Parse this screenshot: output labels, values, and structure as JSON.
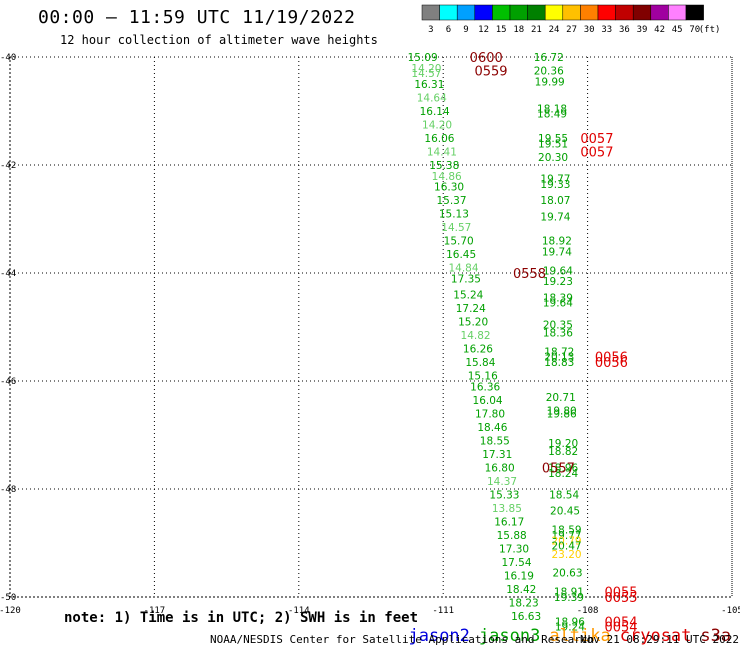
{
  "title": "00:00 — 11:59 UTC 11/19/2022",
  "subtitle": "12 hour collection of altimeter wave heights",
  "colorbar": {
    "unit_label": "(ft)",
    "ticks": [
      "3",
      "6",
      "9",
      "12",
      "15",
      "18",
      "21",
      "24",
      "27",
      "30",
      "33",
      "36",
      "39",
      "42",
      "45",
      "70"
    ],
    "colors": [
      "#808080",
      "#00ffff",
      "#00a0ff",
      "#0000ff",
      "#00c000",
      "#00a000",
      "#008000",
      "#ffff00",
      "#ffc000",
      "#ff8000",
      "#ff0000",
      "#c00000",
      "#800000",
      "#a000a0",
      "#ff80ff",
      "#000000"
    ]
  },
  "chart_data": {
    "type": "scatter",
    "description_axes": {
      "x": "longitude",
      "y": "latitude"
    },
    "xlim": [
      -120,
      -105
    ],
    "ylim": [
      -50,
      -40
    ],
    "x_ticks": [
      "-120",
      "-117",
      "-114",
      "-111",
      "-108",
      "-105"
    ],
    "y_ticks": [
      "-40",
      "-42",
      "-44",
      "-46",
      "-48",
      "-50"
    ],
    "grid": true,
    "track_a": [
      {
        "lon": -111.74,
        "lat": -40.0,
        "swh": "15.09",
        "color": "#00a000"
      },
      {
        "lon": -111.66,
        "lat": -40.2,
        "swh": "14.20",
        "color": "#66d066"
      },
      {
        "lon": -111.66,
        "lat": -40.3,
        "swh": "14.57",
        "color": "#66d066"
      },
      {
        "lon": -111.6,
        "lat": -40.5,
        "swh": "16.31",
        "color": "#00a000"
      },
      {
        "lon": -111.55,
        "lat": -40.75,
        "swh": "14.64",
        "color": "#66d066"
      },
      {
        "lon": -111.49,
        "lat": -41.0,
        "swh": "16.14",
        "color": "#00a000"
      },
      {
        "lon": -111.44,
        "lat": -41.25,
        "swh": "14.20",
        "color": "#66d066"
      },
      {
        "lon": -111.39,
        "lat": -41.5,
        "swh": "16.06",
        "color": "#00a000"
      },
      {
        "lon": -111.34,
        "lat": -41.75,
        "swh": "14.41",
        "color": "#66d066"
      },
      {
        "lon": -111.29,
        "lat": -42.0,
        "swh": "15.38",
        "color": "#00a000"
      },
      {
        "lon": -111.24,
        "lat": -42.2,
        "swh": "14.86",
        "color": "#66d066"
      },
      {
        "lon": -111.19,
        "lat": -42.4,
        "swh": "16.30",
        "color": "#00a000"
      },
      {
        "lon": -111.14,
        "lat": -42.65,
        "swh": "15.37",
        "color": "#00a000"
      },
      {
        "lon": -111.09,
        "lat": -42.9,
        "swh": "15.13",
        "color": "#00a000"
      },
      {
        "lon": -111.04,
        "lat": -43.15,
        "swh": "14.57",
        "color": "#66d066"
      },
      {
        "lon": -110.99,
        "lat": -43.4,
        "swh": "15.70",
        "color": "#00a000"
      },
      {
        "lon": -110.94,
        "lat": -43.65,
        "swh": "16.45",
        "color": "#00a000"
      },
      {
        "lon": -110.89,
        "lat": -43.9,
        "swh": "14.84",
        "color": "#66d066"
      },
      {
        "lon": -110.84,
        "lat": -44.1,
        "swh": "17.35",
        "color": "#00a000"
      },
      {
        "lon": -110.79,
        "lat": -44.4,
        "swh": "15.24",
        "color": "#00a000"
      },
      {
        "lon": -110.74,
        "lat": -44.65,
        "swh": "17.24",
        "color": "#00a000"
      },
      {
        "lon": -110.69,
        "lat": -44.9,
        "swh": "15.20",
        "color": "#00a000"
      },
      {
        "lon": -110.64,
        "lat": -45.15,
        "swh": "14.82",
        "color": "#66d066"
      },
      {
        "lon": -110.59,
        "lat": -45.4,
        "swh": "16.26",
        "color": "#00a000"
      },
      {
        "lon": -110.54,
        "lat": -45.65,
        "swh": "15.84",
        "color": "#00a000"
      },
      {
        "lon": -110.49,
        "lat": -45.9,
        "swh": "15.16",
        "color": "#00a000"
      },
      {
        "lon": -110.44,
        "lat": -46.1,
        "swh": "16.36",
        "color": "#00a000"
      },
      {
        "lon": -110.39,
        "lat": -46.35,
        "swh": "16.04",
        "color": "#00a000"
      },
      {
        "lon": -110.34,
        "lat": -46.6,
        "swh": "17.80",
        "color": "#00a000"
      },
      {
        "lon": -110.29,
        "lat": -46.85,
        "swh": "18.46",
        "color": "#00a000"
      },
      {
        "lon": -110.24,
        "lat": -47.1,
        "swh": "18.55",
        "color": "#00a000"
      },
      {
        "lon": -110.19,
        "lat": -47.35,
        "swh": "17.31",
        "color": "#00a000"
      },
      {
        "lon": -110.14,
        "lat": -47.6,
        "swh": "16.80",
        "color": "#00a000"
      },
      {
        "lon": -110.09,
        "lat": -47.85,
        "swh": "14.37",
        "color": "#66d066"
      },
      {
        "lon": -110.04,
        "lat": -48.1,
        "swh": "15.33",
        "color": "#00a000"
      },
      {
        "lon": -109.99,
        "lat": -48.35,
        "swh": "13.85",
        "color": "#66d066"
      },
      {
        "lon": -109.94,
        "lat": -48.6,
        "swh": "16.17",
        "color": "#00a000"
      },
      {
        "lon": -109.89,
        "lat": -48.85,
        "swh": "15.88",
        "color": "#00a000"
      },
      {
        "lon": -109.84,
        "lat": -49.1,
        "swh": "17.30",
        "color": "#00a000"
      },
      {
        "lon": -109.79,
        "lat": -49.35,
        "swh": "17.54",
        "color": "#00a000"
      },
      {
        "lon": -109.74,
        "lat": -49.6,
        "swh": "16.19",
        "color": "#00a000"
      },
      {
        "lon": -109.69,
        "lat": -49.85,
        "swh": "18.42",
        "color": "#00a000"
      },
      {
        "lon": -109.64,
        "lat": -50.1,
        "swh": "18.23",
        "color": "#00a000"
      },
      {
        "lon": -109.59,
        "lat": -50.35,
        "swh": "16.63",
        "color": "#00a000"
      }
    ],
    "track_b": [
      {
        "lon": -109.12,
        "lat": -40.0,
        "swh": "16.72",
        "color": "#00a000"
      },
      {
        "lon": -109.12,
        "lat": -40.25,
        "swh": "20.36",
        "color": "#00a000"
      },
      {
        "lon": -109.1,
        "lat": -40.45,
        "swh": "19.99",
        "color": "#00a000"
      },
      {
        "lon": -109.05,
        "lat": -40.95,
        "swh": "18.18",
        "color": "#00a000"
      },
      {
        "lon": -109.05,
        "lat": -41.05,
        "swh": "18.49",
        "color": "#00a000"
      },
      {
        "lon": -109.03,
        "lat": -41.5,
        "swh": "19.55",
        "color": "#00a000"
      },
      {
        "lon": -109.03,
        "lat": -41.6,
        "swh": "19.51",
        "color": "#00a000"
      },
      {
        "lon": -109.03,
        "lat": -41.85,
        "swh": "20.30",
        "color": "#00a000"
      },
      {
        "lon": -108.98,
        "lat": -42.25,
        "swh": "19.77",
        "color": "#00a000"
      },
      {
        "lon": -108.98,
        "lat": -42.35,
        "swh": "19.33",
        "color": "#00a000"
      },
      {
        "lon": -108.98,
        "lat": -42.65,
        "swh": "18.07",
        "color": "#00a000"
      },
      {
        "lon": -108.98,
        "lat": -42.95,
        "swh": "19.74",
        "color": "#00a000"
      },
      {
        "lon": -108.95,
        "lat": -43.4,
        "swh": "18.92",
        "color": "#00a000"
      },
      {
        "lon": -108.95,
        "lat": -43.6,
        "swh": "19.74",
        "color": "#00a000"
      },
      {
        "lon": -108.93,
        "lat": -43.95,
        "swh": "19.64",
        "color": "#00a000"
      },
      {
        "lon": -108.93,
        "lat": -44.15,
        "swh": "19.23",
        "color": "#00a000"
      },
      {
        "lon": -108.93,
        "lat": -44.45,
        "swh": "18.39",
        "color": "#00a000"
      },
      {
        "lon": -108.93,
        "lat": -44.55,
        "swh": "19.64",
        "color": "#00a000"
      },
      {
        "lon": -108.93,
        "lat": -44.95,
        "swh": "20.35",
        "color": "#00a000"
      },
      {
        "lon": -108.93,
        "lat": -45.1,
        "swh": "18.36",
        "color": "#00a000"
      },
      {
        "lon": -108.9,
        "lat": -45.45,
        "swh": "18.72",
        "color": "#00a000"
      },
      {
        "lon": -108.9,
        "lat": -45.55,
        "swh": "20.13",
        "color": "#00a000"
      },
      {
        "lon": -108.9,
        "lat": -45.65,
        "swh": "18.83",
        "color": "#00a000"
      },
      {
        "lon": -108.87,
        "lat": -46.3,
        "swh": "20.71",
        "color": "#00a000"
      },
      {
        "lon": -108.85,
        "lat": -46.55,
        "swh": "19.80",
        "color": "#00a000"
      },
      {
        "lon": -108.85,
        "lat": -46.6,
        "swh": "19.86",
        "color": "#00a000"
      },
      {
        "lon": -108.82,
        "lat": -47.15,
        "swh": "19.20",
        "color": "#00a000"
      },
      {
        "lon": -108.82,
        "lat": -47.3,
        "swh": "18.82",
        "color": "#00a000"
      },
      {
        "lon": -108.82,
        "lat": -47.6,
        "swh": "18.96",
        "color": "#00a000"
      },
      {
        "lon": -108.82,
        "lat": -47.7,
        "swh": "18.24",
        "color": "#00a000"
      },
      {
        "lon": -108.8,
        "lat": -48.1,
        "swh": "18.54",
        "color": "#00a000"
      },
      {
        "lon": -108.78,
        "lat": -48.4,
        "swh": "20.45",
        "color": "#00a000"
      },
      {
        "lon": -108.75,
        "lat": -48.75,
        "swh": "18.59",
        "color": "#00a000"
      },
      {
        "lon": -108.75,
        "lat": -48.85,
        "swh": "19.77",
        "color": "#00a000"
      },
      {
        "lon": -108.75,
        "lat": -48.95,
        "swh": "20.79",
        "color": "#ffd000"
      },
      {
        "lon": -108.75,
        "lat": -49.05,
        "swh": "20.47",
        "color": "#00a000"
      },
      {
        "lon": -108.75,
        "lat": -49.2,
        "swh": "23.20",
        "color": "#ffd000"
      },
      {
        "lon": -108.73,
        "lat": -49.55,
        "swh": "20.63",
        "color": "#00a000"
      },
      {
        "lon": -108.7,
        "lat": -49.9,
        "swh": "18.91",
        "color": "#00a000"
      },
      {
        "lon": -108.7,
        "lat": -50.0,
        "swh": "19.39",
        "color": "#00a000"
      },
      {
        "lon": -108.68,
        "lat": -50.45,
        "swh": "18.96",
        "color": "#00a000"
      },
      {
        "lon": -108.68,
        "lat": -50.55,
        "swh": "19.24",
        "color": "#00a000"
      }
    ],
    "time_labels": [
      {
        "lon": -110.45,
        "lat": -40.0,
        "text": "0600",
        "color": "#8b0000"
      },
      {
        "lon": -110.35,
        "lat": -40.25,
        "text": "0559",
        "color": "#8b0000"
      },
      {
        "lon": -108.15,
        "lat": -41.5,
        "text": "0057",
        "color": "#e00000"
      },
      {
        "lon": -108.15,
        "lat": -41.75,
        "text": "0057",
        "color": "#e00000"
      },
      {
        "lon": -109.55,
        "lat": -44.0,
        "text": "0558",
        "color": "#8b0000"
      },
      {
        "lon": -107.85,
        "lat": -45.55,
        "text": "0056",
        "color": "#e00000"
      },
      {
        "lon": -107.85,
        "lat": -45.65,
        "text": "0056",
        "color": "#e00000"
      },
      {
        "lon": -108.95,
        "lat": -47.6,
        "text": "0557",
        "color": "#8b0000"
      },
      {
        "lon": -107.65,
        "lat": -49.9,
        "text": "0055",
        "color": "#e00000"
      },
      {
        "lon": -107.65,
        "lat": -50.0,
        "text": "0055",
        "color": "#e00000"
      },
      {
        "lon": -107.65,
        "lat": -50.45,
        "text": "0054",
        "color": "#e00000"
      },
      {
        "lon": -107.65,
        "lat": -50.55,
        "text": "0054",
        "color": "#e00000"
      }
    ]
  },
  "footer": {
    "note": "note: 1) Time is in UTC; 2) SWH is in feet",
    "satellites": [
      {
        "name": "jason2",
        "color": "#0000dd"
      },
      {
        "name": "jason3",
        "color": "#00a000"
      },
      {
        "name": "altika",
        "color": "#ff9900"
      },
      {
        "name": "cryosat",
        "color": "#dd0000"
      },
      {
        "name": "s3a",
        "color": "#8b0000"
      }
    ],
    "credit": "NOAA/NESDIS Center for Satellite Applications and Research",
    "timestamp": "Nov 21 08:29:11 UTC 2022"
  }
}
